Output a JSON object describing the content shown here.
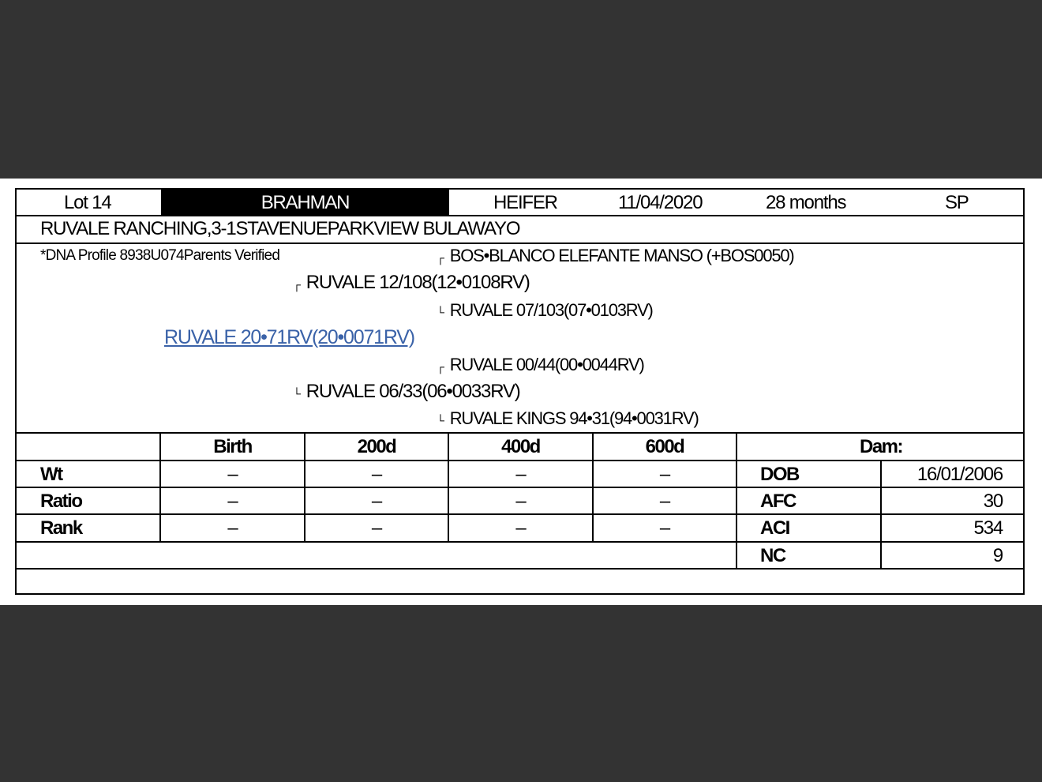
{
  "header": {
    "lot": "Lot 14",
    "breed": "BRAHMAN",
    "sex": "HEIFER",
    "date": "11/04/2020",
    "age": "28 months",
    "code": "SP"
  },
  "breeder": "RUVALE RANCHING,3-1STAVENUEPARKVIEW BULAWAYO",
  "dna_note": "*DNA Profile 8938U074Parents Verified",
  "pedigree": {
    "sire_sire": "BOS•BLANCO ELEFANTE MANSO (+BOS0050)",
    "sire": "RUVALE 12/108(12•0108RV)",
    "sire_dam": "RUVALE 07/103(07•0103RV)",
    "animal": "RUVALE 20•71RV(20•0071RV)",
    "dam_sire": "RUVALE 00/44(00•0044RV)",
    "dam": "RUVALE 06/33(06•0033RV)",
    "dam_dam": "RUVALE KINGS 94•31(94•0031RV)",
    "glyph_top": "┌",
    "glyph_bottom": "└"
  },
  "stats": {
    "columns": [
      "Birth",
      "200d",
      "400d",
      "600d"
    ],
    "rows": [
      {
        "label": "Wt",
        "values": [
          "–",
          "–",
          "–",
          "–"
        ]
      },
      {
        "label": "Ratio",
        "values": [
          "–",
          "–",
          "–",
          "–"
        ]
      },
      {
        "label": "Rank",
        "values": [
          "–",
          "–",
          "–",
          "–"
        ]
      }
    ]
  },
  "dam_info": {
    "title": "Dam:",
    "rows": [
      {
        "label": "DOB",
        "value": "16/01/2006"
      },
      {
        "label": "AFC",
        "value": "30"
      },
      {
        "label": "ACI",
        "value": "534"
      },
      {
        "label": "NC",
        "value": "9"
      }
    ]
  }
}
